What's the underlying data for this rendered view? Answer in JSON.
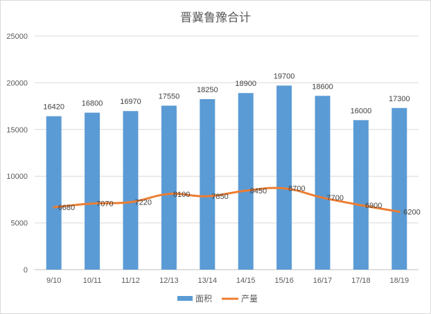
{
  "chart_data": {
    "type": "bar",
    "title": "晋冀鲁豫合计",
    "categories": [
      "9/10",
      "10/11",
      "11/12",
      "12/13",
      "13/14",
      "14/15",
      "15/16",
      "16/17",
      "17/18",
      "18/19"
    ],
    "series": [
      {
        "name": "面积",
        "type": "bar",
        "color": "#5B9BD5",
        "values": [
          16420,
          16800,
          16970,
          17550,
          18250,
          18900,
          19700,
          18600,
          16000,
          17300
        ]
      },
      {
        "name": "产量",
        "type": "line",
        "color": "#ED7D31",
        "values": [
          6680,
          7070,
          7220,
          8100,
          7850,
          8450,
          8700,
          7700,
          6900,
          6200
        ]
      }
    ],
    "ylim": [
      0,
      25000
    ],
    "yticks": [
      0,
      5000,
      10000,
      15000,
      20000,
      25000
    ],
    "grid": true,
    "legend_position": "bottom"
  }
}
